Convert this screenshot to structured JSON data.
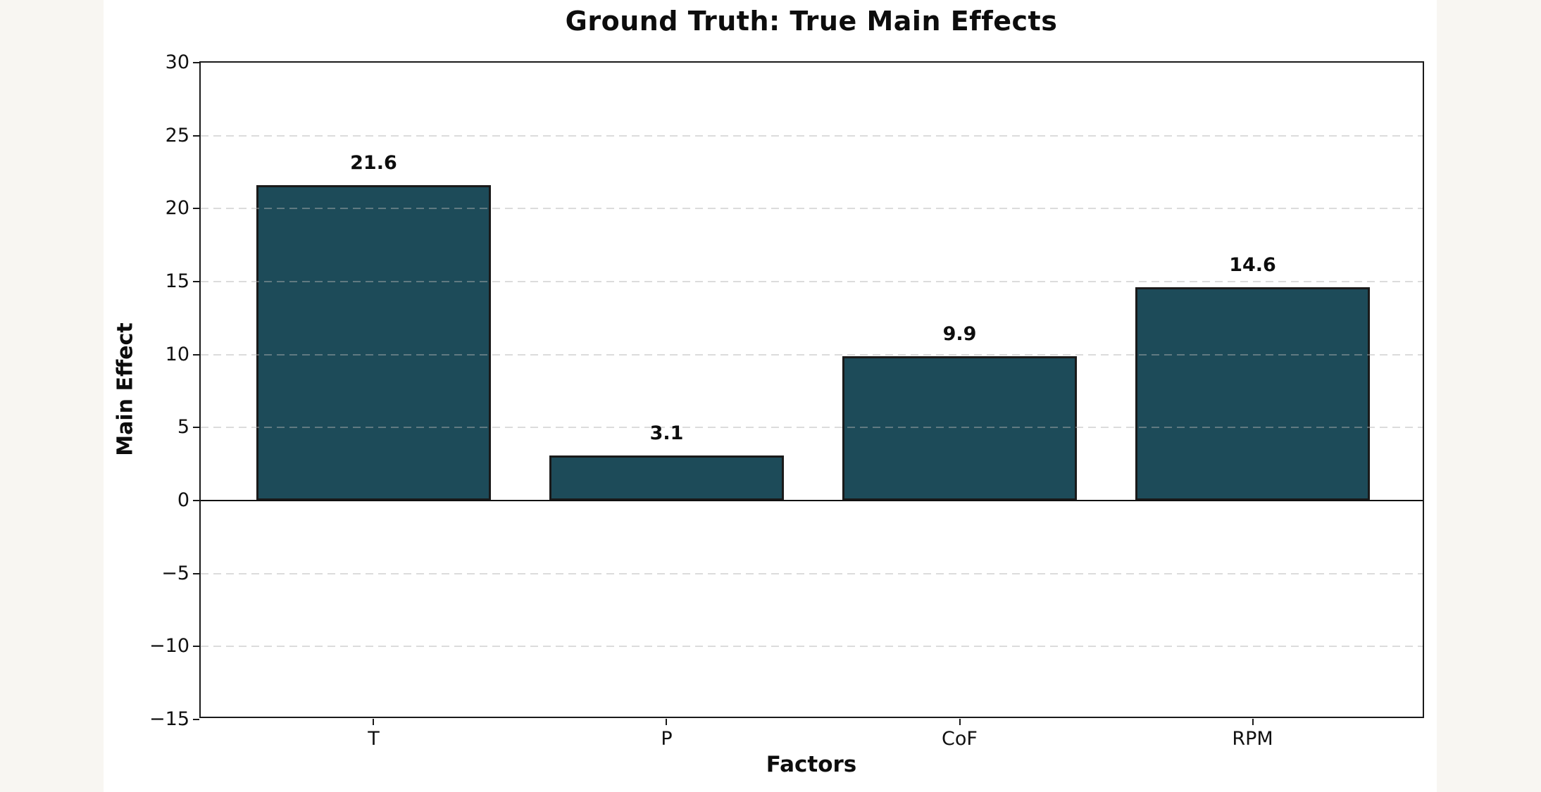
{
  "page": {
    "background_color": "#f8f6f2",
    "figure_background_color": "#ffffff"
  },
  "chart_data": {
    "type": "bar",
    "title": "Ground Truth: True Main Effects",
    "xlabel": "Factors",
    "ylabel": "Main Effect",
    "categories": [
      "T",
      "P",
      "CoF",
      "RPM"
    ],
    "values": [
      21.6,
      3.1,
      9.9,
      14.6
    ],
    "value_labels": [
      "21.6",
      "3.1",
      "9.9",
      "14.6"
    ],
    "ylim": [
      -15,
      30
    ],
    "xlim": [
      -0.59,
      3.59
    ],
    "yticks": [
      30,
      25,
      20,
      15,
      10,
      5,
      0,
      -5,
      -10,
      -15
    ],
    "ytick_labels": [
      "30",
      "25",
      "20",
      "15",
      "10",
      "5",
      "0",
      "−5",
      "−10",
      "−15"
    ],
    "bar_width_fraction": 0.8,
    "grid": true,
    "grid_style": "dashed",
    "grid_above_bars": true,
    "zero_line": true,
    "legend": null,
    "colors": {
      "bar_fill": "#1d4b59",
      "bar_edge": "#1a1a1a",
      "grid": "rgba(178,178,178,0.45)",
      "axis": "#1a1a1a",
      "text": "#0d0d0d"
    }
  }
}
